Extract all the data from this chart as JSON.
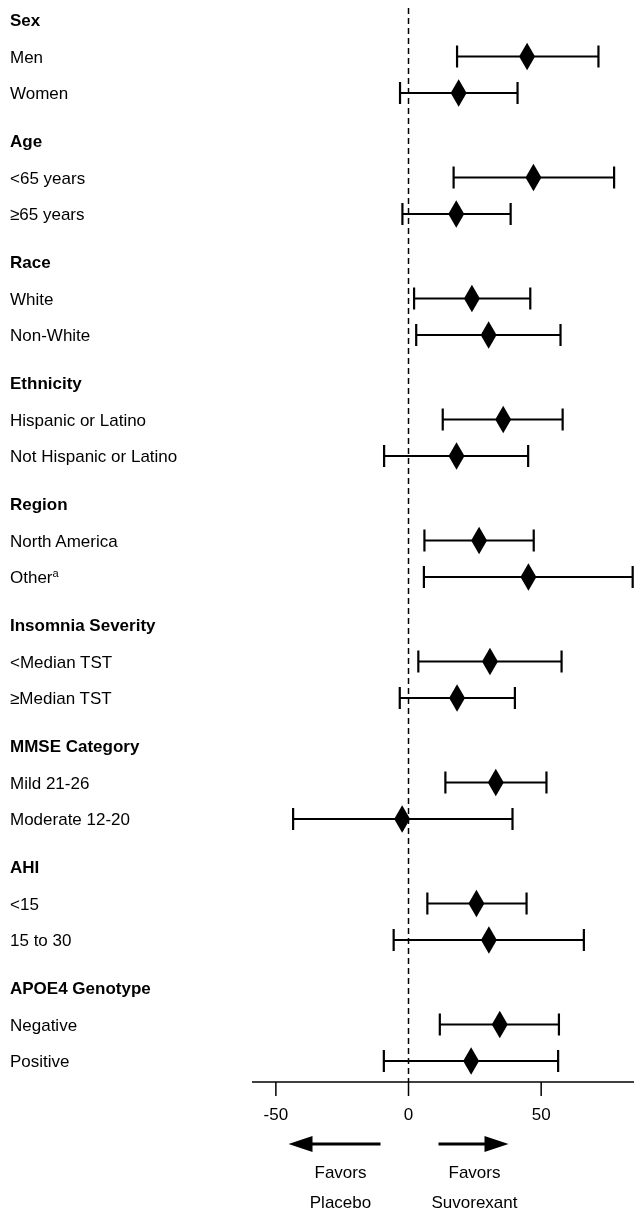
{
  "chart_data": {
    "type": "scatter",
    "orientation": "horizontal",
    "marker": "diamond",
    "categories": [
      "Sex",
      "Men",
      "Women",
      "Age",
      "<65 years",
      "≥65 years",
      "Race",
      "White",
      "Non-White",
      "Ethnicity",
      "Hispanic or Latino",
      "Not Hispanic or Latino",
      "Region",
      "North America",
      "Other$^{a}$",
      "Insomnia Severity",
      "<Median TST",
      "≥Median TST",
      "MMSE Category",
      "Mild 21-26",
      "Moderate 12-20",
      "AHI",
      "<15",
      "15 to 30",
      "APOE4 Genotype",
      "Negative",
      "Positive"
    ],
    "series": [
      {
        "color": "#000000",
        "values": [
          null,
          44.7,
          18.9,
          null,
          47.1,
          18.0,
          null,
          23.9,
          30.2,
          null,
          35.7,
          18.1,
          null,
          26.6,
          45.2,
          null,
          30.7,
          18.3,
          null,
          32.9,
          -2.4,
          null,
          25.6,
          30.3,
          null,
          34.4,
          23.6
        ],
        "errors": [
          null,
          [
            18.3,
            71.6
          ],
          [
            -3.2,
            41.1
          ],
          null,
          [
            17.0,
            77.5
          ],
          [
            -2.3,
            38.5
          ],
          null,
          [
            2.1,
            45.9
          ],
          [
            2.9,
            57.3
          ],
          null,
          [
            12.9,
            58.1
          ],
          [
            -9.2,
            45.1
          ],
          null,
          [
            6.0,
            47.2
          ],
          [
            5.8,
            84.5
          ],
          null,
          [
            3.7,
            57.7
          ],
          [
            -3.3,
            40.1
          ],
          null,
          [
            13.9,
            52.0
          ],
          [
            -43.5,
            39.2
          ],
          null,
          [
            7.1,
            44.5
          ],
          [
            -5.6,
            66.1
          ],
          null,
          [
            11.8,
            56.7
          ],
          [
            -9.3,
            56.4
          ]
        ]
      }
    ],
    "xlim": [
      -59,
      85
    ],
    "xticks": [
      -50,
      0,
      50
    ],
    "ref_lines": [
      {
        "axis": "x",
        "value": 0,
        "line_style": "dashed",
        "color": "#000000"
      }
    ],
    "annotations": [
      "Favors Placebo",
      "Favors Suvorexant"
    ]
  }
}
